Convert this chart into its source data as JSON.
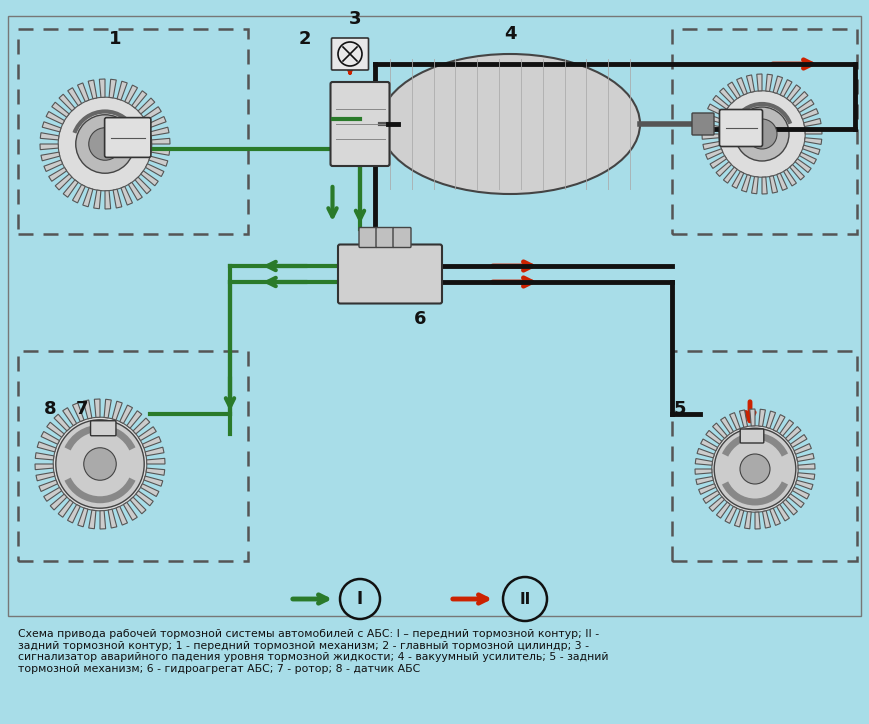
{
  "bg_color": "#a8dde8",
  "green_color": "#2a7a2a",
  "red_color": "#cc2200",
  "black_color": "#111111",
  "caption": "Схема привода рабочей тормозной системы автомобилей с АБС: I – передний тормозной контур; II -\nзадний тормозной контур; 1 - передний тормозной механизм; 2 - главный тормозной цилиндр; 3 -\nсигнализатор аварийного падения уровня тормозной жидкости; 4 - вакуумный усилитель; 5 - задний\nтормозной механизм; 6 - гидроагрегат АБС; 7 - ротор; 8 - датчик АБС",
  "figsize": [
    8.69,
    7.24
  ],
  "dpi": 100
}
